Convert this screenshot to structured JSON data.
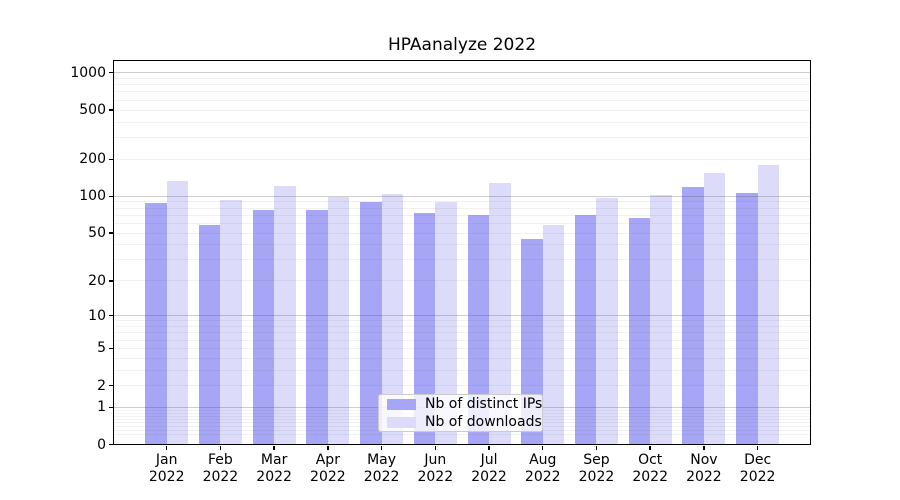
{
  "chart_data": {
    "type": "bar",
    "title": "HPAanalyze 2022",
    "yscale": "log1p",
    "ylim": [
      0,
      1000
    ],
    "yticks": [
      0,
      1,
      2,
      5,
      10,
      20,
      50,
      100,
      200,
      500,
      1000
    ],
    "grid": "horizontal",
    "legend_position": "lower center",
    "categories": [
      "Jan 2022",
      "Feb 2022",
      "Mar 2022",
      "Apr 2022",
      "May 2022",
      "Jun 2022",
      "Jul 2022",
      "Aug 2022",
      "Sep 2022",
      "Oct 2022",
      "Nov 2022",
      "Dec 2022"
    ],
    "series": [
      {
        "name": "Nb of distinct IPs",
        "color": "#a7a6f6",
        "values": [
          88,
          58,
          77,
          77,
          89,
          73,
          70,
          45,
          70,
          67,
          120,
          107
        ]
      },
      {
        "name": "Nb of downloads",
        "color": "#dcdbfa",
        "values": [
          133,
          93,
          121,
          98,
          105,
          90,
          129,
          58,
          97,
          103,
          154,
          180
        ]
      }
    ]
  },
  "colors": {
    "axis": "#000000",
    "text": "#000000",
    "legend_border": "#cccccc"
  }
}
